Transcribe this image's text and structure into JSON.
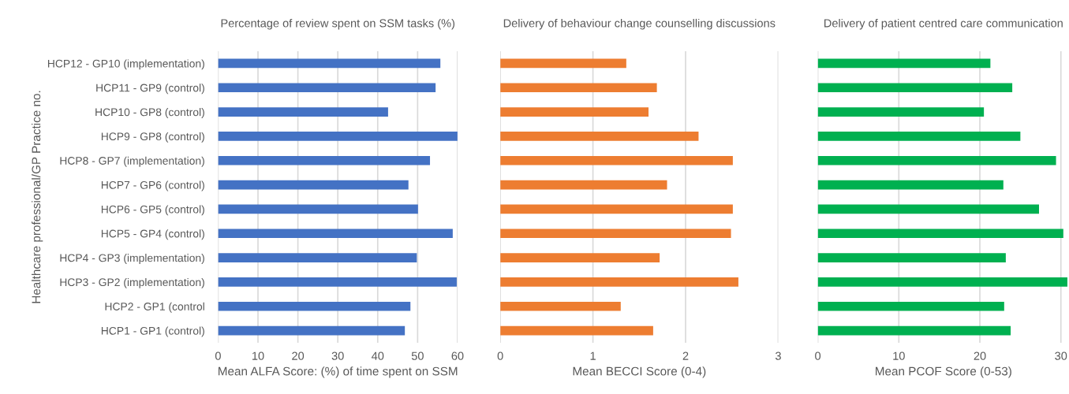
{
  "chart_data": [
    {
      "type": "bar",
      "orientation": "horizontal",
      "title": "Percentage of review spent on SSM tasks (%)",
      "xlabel": "Mean ALFA Score: (%) of time spent on SSM",
      "ylabel": "Healthcare professional/GP Practice no.",
      "categories": [
        "HCP12 - GP10 (implementation)",
        "HCP11 - GP9 (control)",
        "HCP10 - GP8 (control)",
        "HCP9 - GP8 (control)",
        "HCP8 - GP7 (implementation)",
        "HCP7 - GP6 (control)",
        "HCP6 - GP5 (control)",
        "HCP5 - GP4 (control)",
        "HCP4 - GP3 (implementation)",
        "HCP3 - GP2 (implementation)",
        "HCP2 - GP1 (control",
        "HCP1 - GP1 (control)"
      ],
      "values": [
        55.7,
        54.5,
        42.6,
        60,
        53.1,
        47.7,
        50.1,
        58.8,
        49.8,
        59.8,
        48.2,
        46.8
      ],
      "color": "#4472c4",
      "xlim": [
        0,
        60
      ],
      "xticks": [
        0,
        10,
        20,
        30,
        40,
        50,
        60
      ],
      "grid": "x"
    },
    {
      "type": "bar",
      "orientation": "horizontal",
      "title": "Delivery of behaviour change counselling discussions",
      "xlabel": "Mean BECCI Score (0-4)",
      "values": [
        1.36,
        1.69,
        1.6,
        2.14,
        2.51,
        1.8,
        2.51,
        2.49,
        1.72,
        2.57,
        1.3,
        1.65
      ],
      "color": "#ed7d31",
      "xlim": [
        0,
        3
      ],
      "xticks": [
        0,
        1,
        2,
        3
      ],
      "grid": "x",
      "tick_labels": "x"
    },
    {
      "type": "bar",
      "orientation": "horizontal",
      "title": "Delivery of patient centred care communication",
      "xlabel": "Mean PCOF Score (0-53)",
      "values": [
        21.3,
        24.0,
        20.5,
        25.0,
        29.4,
        22.9,
        27.3,
        30.3,
        23.2,
        30.8,
        23.0,
        23.8
      ],
      "color": "#00b050",
      "xlim": [
        0,
        31
      ],
      "xticks": [
        0,
        10,
        20,
        30
      ],
      "grid": "x",
      "tick_labels": "x"
    }
  ]
}
